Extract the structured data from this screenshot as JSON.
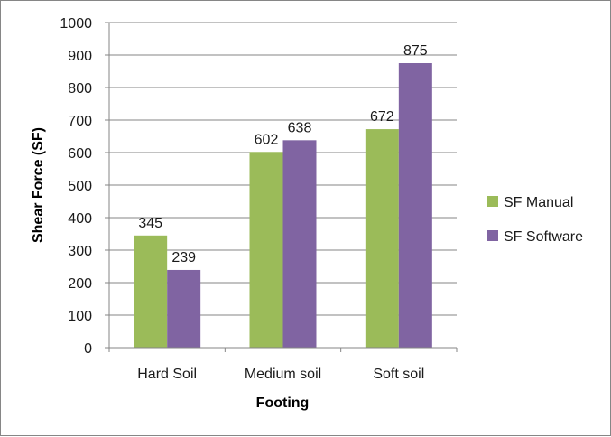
{
  "chart_data": {
    "type": "bar",
    "title": "",
    "xlabel": "Footing",
    "ylabel": "Shear Force (SF)",
    "categories": [
      "Hard Soil",
      "Medium soil",
      "Soft soil"
    ],
    "series": [
      {
        "name": "SF Manual",
        "values": [
          345,
          602,
          672
        ],
        "color": "#9BBB59"
      },
      {
        "name": "SF Software",
        "values": [
          239,
          638,
          875
        ],
        "color": "#8064A2"
      }
    ],
    "ylim": [
      0,
      1000
    ],
    "yticks": [
      0,
      100,
      200,
      300,
      400,
      500,
      600,
      700,
      800,
      900,
      1000
    ],
    "grid": true,
    "legend": "right",
    "data_labels": true
  }
}
